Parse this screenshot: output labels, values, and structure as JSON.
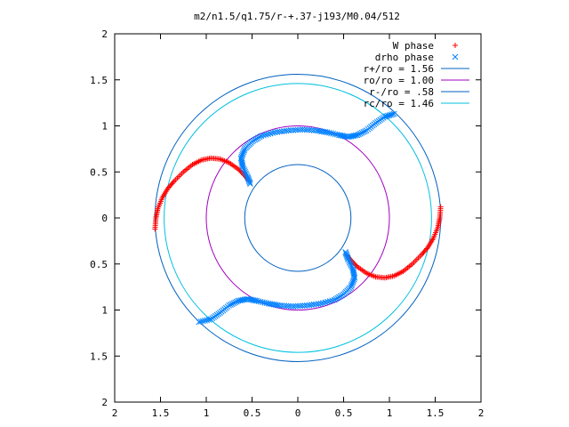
{
  "chart_data": {
    "type": "scatter",
    "title": "m2/n1.5/q1.75/r-+.37-j193/M0.04/512",
    "xlim": [
      -2,
      2
    ],
    "ylim": [
      -2,
      2
    ],
    "x_ticks": [
      -2,
      -1.5,
      -1,
      -0.5,
      0,
      0.5,
      1,
      1.5,
      2
    ],
    "x_tick_labels": [
      "2",
      "1.5",
      "1",
      "0.5",
      "0",
      "0.5",
      "1",
      "1.5",
      "2"
    ],
    "y_ticks": [
      2,
      1.5,
      1,
      0.5,
      0,
      -0.5,
      -1,
      -1.5,
      -2
    ],
    "y_tick_labels": [
      "2",
      "1.5",
      "1",
      "0.5",
      "0",
      "0.5",
      "1",
      "1.5",
      "2"
    ],
    "grid": false,
    "legend_position": "top-right",
    "series": [
      {
        "name": "W phase",
        "marker": "plus",
        "color": "#ff0000",
        "segments": [
          [
            [
              -1.56,
              -0.12
            ],
            [
              -1.55,
              0.0
            ],
            [
              -1.53,
              0.1
            ],
            [
              -1.48,
              0.22
            ],
            [
              -1.42,
              0.32
            ],
            [
              -1.35,
              0.4
            ],
            [
              -1.25,
              0.5
            ],
            [
              -1.15,
              0.58
            ],
            [
              -1.05,
              0.63
            ],
            [
              -0.95,
              0.65
            ],
            [
              -0.85,
              0.64
            ],
            [
              -0.75,
              0.6
            ],
            [
              -0.65,
              0.53
            ],
            [
              -0.58,
              0.46
            ],
            [
              -0.53,
              0.4
            ]
          ],
          [
            [
              1.56,
              0.12
            ],
            [
              1.55,
              0.0
            ],
            [
              1.53,
              -0.1
            ],
            [
              1.48,
              -0.22
            ],
            [
              1.42,
              -0.32
            ],
            [
              1.35,
              -0.4
            ],
            [
              1.25,
              -0.5
            ],
            [
              1.15,
              -0.58
            ],
            [
              1.05,
              -0.63
            ],
            [
              0.95,
              -0.65
            ],
            [
              0.85,
              -0.64
            ],
            [
              0.75,
              -0.6
            ],
            [
              0.65,
              -0.53
            ],
            [
              0.58,
              -0.46
            ],
            [
              0.53,
              -0.4
            ]
          ]
        ]
      },
      {
        "name": "drho phase",
        "marker": "cross",
        "color": "#0080ff",
        "segments": [
          [
            [
              -0.52,
              0.37
            ],
            [
              -0.55,
              0.45
            ],
            [
              -0.6,
              0.55
            ],
            [
              -0.62,
              0.65
            ],
            [
              -0.58,
              0.75
            ],
            [
              -0.5,
              0.83
            ],
            [
              -0.4,
              0.89
            ],
            [
              -0.25,
              0.93
            ],
            [
              -0.1,
              0.95
            ],
            [
              0.05,
              0.96
            ],
            [
              0.2,
              0.95
            ],
            [
              0.32,
              0.93
            ],
            [
              0.45,
              0.9
            ],
            [
              0.55,
              0.88
            ],
            [
              0.65,
              0.9
            ],
            [
              0.75,
              0.95
            ],
            [
              0.85,
              1.03
            ],
            [
              0.95,
              1.1
            ],
            [
              1.05,
              1.13
            ]
          ],
          [
            [
              0.52,
              -0.37
            ],
            [
              0.55,
              -0.45
            ],
            [
              0.6,
              -0.55
            ],
            [
              0.62,
              -0.65
            ],
            [
              0.58,
              -0.75
            ],
            [
              0.5,
              -0.83
            ],
            [
              0.4,
              -0.89
            ],
            [
              0.25,
              -0.93
            ],
            [
              0.1,
              -0.95
            ],
            [
              -0.05,
              -0.96
            ],
            [
              -0.2,
              -0.95
            ],
            [
              -0.32,
              -0.93
            ],
            [
              -0.45,
              -0.9
            ],
            [
              -0.55,
              -0.88
            ],
            [
              -0.65,
              -0.9
            ],
            [
              -0.75,
              -0.95
            ],
            [
              -0.85,
              -1.03
            ],
            [
              -0.95,
              -1.1
            ],
            [
              -1.08,
              -1.13
            ]
          ]
        ]
      },
      {
        "name": "r+/ro = 1.56",
        "type": "circle",
        "radius": 1.56,
        "color": "#0060c0"
      },
      {
        "name": "ro/ro = 1.00",
        "type": "circle",
        "radius": 1.0,
        "color": "#a000c0"
      },
      {
        "name": "r-/ro = .58",
        "type": "circle",
        "radius": 0.58,
        "color": "#0060c0"
      },
      {
        "name": "rc/ro = 1.46",
        "type": "circle",
        "radius": 1.46,
        "color": "#00c0e0"
      }
    ]
  }
}
